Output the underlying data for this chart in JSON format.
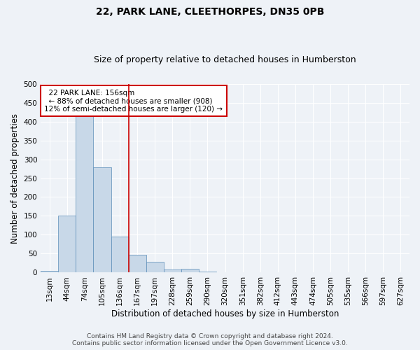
{
  "title": "22, PARK LANE, CLEETHORPES, DN35 0PB",
  "subtitle": "Size of property relative to detached houses in Humberston",
  "xlabel": "Distribution of detached houses by size in Humberston",
  "ylabel": "Number of detached properties",
  "footer_line1": "Contains HM Land Registry data © Crown copyright and database right 2024.",
  "footer_line2": "Contains public sector information licensed under the Open Government Licence v3.0.",
  "annotation_line1": "22 PARK LANE: 156sqm",
  "annotation_line2": "← 88% of detached houses are smaller (908)",
  "annotation_line3": "12% of semi-detached houses are larger (120) →",
  "bar_labels": [
    "13sqm",
    "44sqm",
    "74sqm",
    "105sqm",
    "136sqm",
    "167sqm",
    "197sqm",
    "228sqm",
    "259sqm",
    "290sqm",
    "320sqm",
    "351sqm",
    "382sqm",
    "412sqm",
    "443sqm",
    "474sqm",
    "505sqm",
    "535sqm",
    "566sqm",
    "597sqm",
    "627sqm"
  ],
  "bar_values": [
    5,
    150,
    420,
    278,
    95,
    48,
    29,
    8,
    10,
    3,
    0,
    0,
    0,
    0,
    0,
    0,
    0,
    0,
    0,
    0,
    0
  ],
  "bar_color": "#c8d8e8",
  "bar_edge_color": "#5b8db8",
  "vline_x": 4.5,
  "vline_color": "#cc0000",
  "annotation_box_color": "#cc0000",
  "ylim": [
    0,
    500
  ],
  "yticks": [
    0,
    50,
    100,
    150,
    200,
    250,
    300,
    350,
    400,
    450,
    500
  ],
  "background_color": "#eef2f7",
  "plot_background": "#eef2f7",
  "grid_color": "#ffffff",
  "title_fontsize": 10,
  "subtitle_fontsize": 9,
  "tick_fontsize": 7.5,
  "ylabel_fontsize": 8.5,
  "xlabel_fontsize": 8.5,
  "annotation_fontsize": 7.5,
  "footer_fontsize": 6.5
}
